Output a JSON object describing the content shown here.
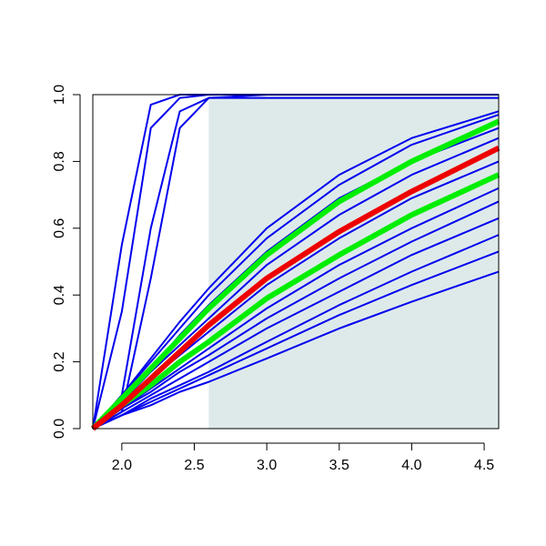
{
  "chart_data": {
    "type": "line",
    "x": [
      1.8,
      2.0,
      2.2,
      2.4,
      2.6,
      3.0,
      3.5,
      4.0,
      4.6
    ],
    "xlim": [
      1.8,
      4.6
    ],
    "ylim": [
      0,
      1
    ],
    "xticks": [
      {
        "value": 2,
        "label": "2.0"
      },
      2.5,
      {
        "value": 3,
        "label": "3.0"
      },
      3.5,
      {
        "value": 4,
        "label": "4.0"
      },
      4.5
    ],
    "yticks": [
      {
        "value": 0,
        "label": "0.0"
      },
      0.2,
      0.4,
      0.6,
      0.8,
      {
        "value": 1,
        "label": "1.0"
      }
    ],
    "shade": {
      "xlim": [
        2.6,
        4.6
      ],
      "color": "#deeaea"
    },
    "series": [
      {
        "color": "#0000ee",
        "values": [
          0,
          0.55,
          0.97,
          1,
          1,
          1,
          1,
          1,
          1
        ]
      },
      {
        "color": "#0000ee",
        "values": [
          0,
          0.35,
          0.9,
          0.99,
          1,
          1,
          1,
          1,
          1
        ]
      },
      {
        "color": "#0000ee",
        "values": [
          0,
          0.1,
          0.6,
          0.95,
          0.99,
          1,
          1,
          1,
          1
        ]
      },
      {
        "color": "#0000ee",
        "values": [
          0,
          0.05,
          0.45,
          0.9,
          0.99,
          0.99,
          0.99,
          0.99,
          0.99
        ]
      },
      {
        "color": "#0000ee",
        "values": [
          0,
          0.1,
          0.21,
          0.32,
          0.42,
          0.6,
          0.76,
          0.87,
          0.95
        ]
      },
      {
        "color": "#0000ee",
        "values": [
          0,
          0.1,
          0.2,
          0.3,
          0.4,
          0.57,
          0.73,
          0.85,
          0.94
        ]
      },
      {
        "color": "#0000ee",
        "values": [
          0,
          0.09,
          0.18,
          0.28,
          0.37,
          0.53,
          0.69,
          0.8,
          0.9
        ]
      },
      {
        "color": "#0000ee",
        "values": [
          0,
          0.08,
          0.17,
          0.25,
          0.33,
          0.49,
          0.64,
          0.76,
          0.87
        ]
      },
      {
        "color": "#0000ee",
        "values": [
          0,
          0.07,
          0.15,
          0.22,
          0.29,
          0.43,
          0.57,
          0.69,
          0.8
        ]
      },
      {
        "color": "#0000ee",
        "values": [
          0,
          0.06,
          0.12,
          0.18,
          0.24,
          0.36,
          0.49,
          0.6,
          0.72
        ]
      },
      {
        "color": "#0000ee",
        "values": [
          0,
          0.06,
          0.11,
          0.17,
          0.22,
          0.33,
          0.45,
          0.56,
          0.68
        ]
      },
      {
        "color": "#0000ee",
        "values": [
          0,
          0.05,
          0.1,
          0.15,
          0.2,
          0.3,
          0.41,
          0.52,
          0.63
        ]
      },
      {
        "color": "#0000ee",
        "values": [
          0,
          0.04,
          0.09,
          0.13,
          0.17,
          0.26,
          0.37,
          0.47,
          0.58
        ]
      },
      {
        "color": "#0000ee",
        "values": [
          0,
          0.04,
          0.08,
          0.12,
          0.16,
          0.24,
          0.34,
          0.43,
          0.53
        ]
      },
      {
        "color": "#0000ee",
        "values": [
          0,
          0.04,
          0.07,
          0.11,
          0.14,
          0.21,
          0.3,
          0.38,
          0.47
        ]
      },
      {
        "color": "#00ee00",
        "highlight": true,
        "values": [
          0,
          0.09,
          0.18,
          0.27,
          0.36,
          0.52,
          0.68,
          0.8,
          0.92
        ]
      },
      {
        "color": "#00ee00",
        "highlight": true,
        "values": [
          0,
          0.07,
          0.13,
          0.2,
          0.26,
          0.39,
          0.52,
          0.64,
          0.76
        ]
      },
      {
        "color": "#ee0000",
        "highlight": true,
        "values": [
          0,
          0.07,
          0.15,
          0.23,
          0.31,
          0.45,
          0.59,
          0.71,
          0.84
        ]
      }
    ]
  }
}
